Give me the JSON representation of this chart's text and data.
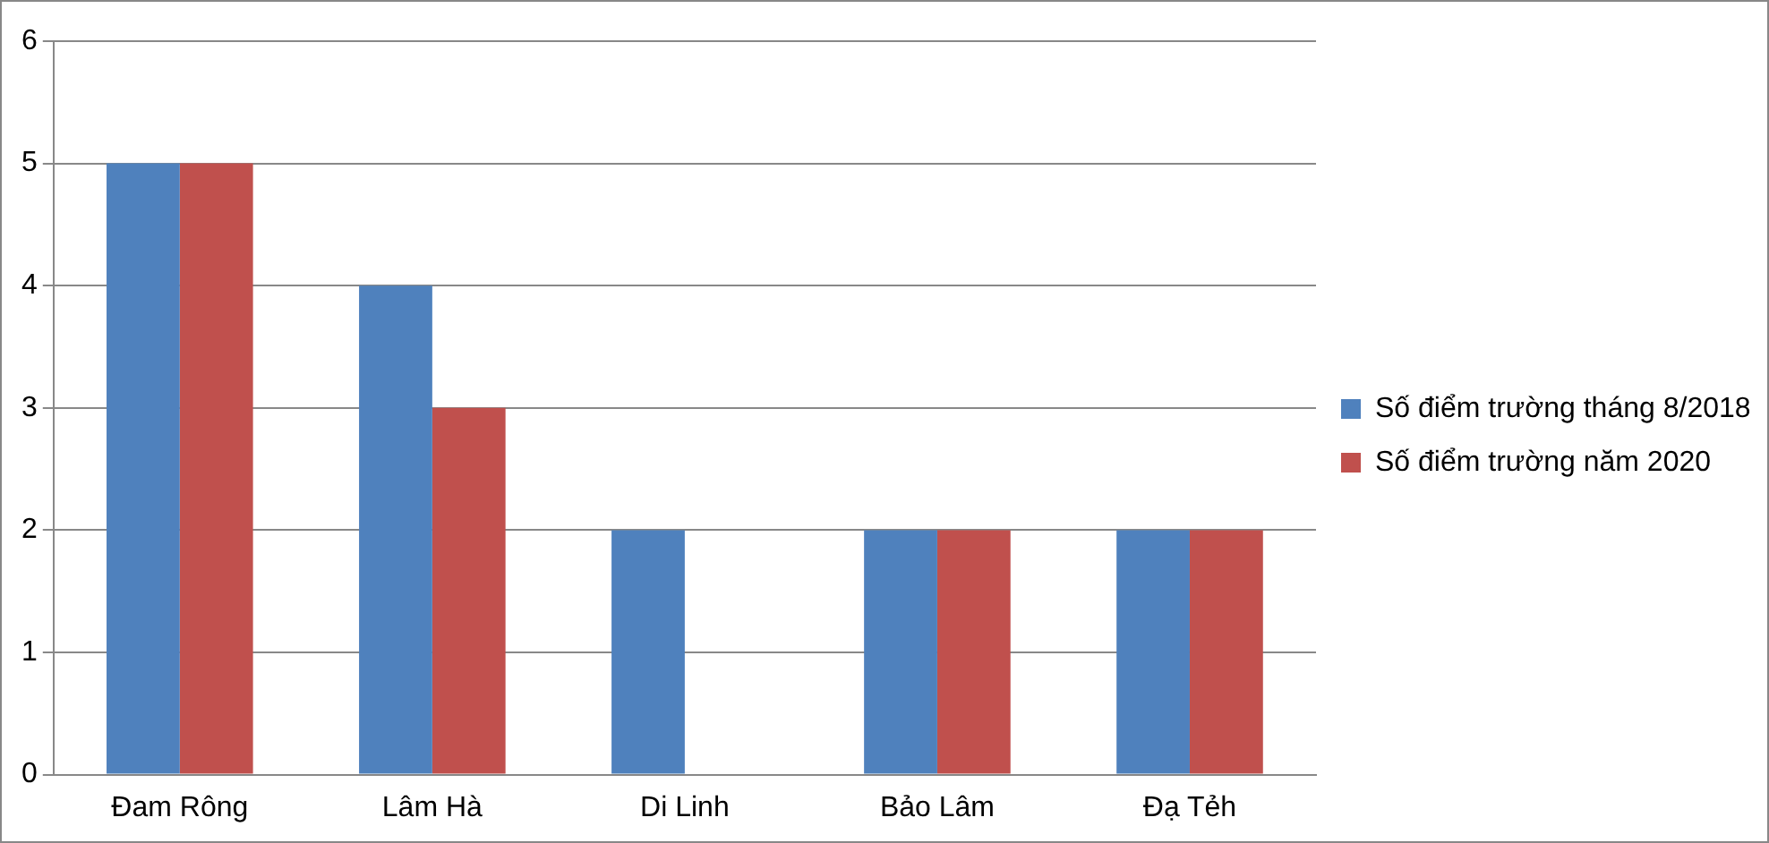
{
  "chart_data": {
    "type": "bar",
    "categories": [
      "Đam Rông",
      "Lâm Hà",
      "Di Linh",
      "Bảo Lâm",
      "Đạ Tẻh"
    ],
    "series": [
      {
        "name": "Số điểm trường tháng 8/2018",
        "color": "#4f81bd",
        "values": [
          5,
          4,
          2,
          2,
          2
        ]
      },
      {
        "name": "Số điểm trường năm 2020",
        "color": "#c0504d",
        "values": [
          5,
          3,
          0,
          2,
          2
        ]
      }
    ],
    "ylim": [
      0,
      6
    ],
    "yticks": [
      0,
      1,
      2,
      3,
      4,
      5,
      6
    ],
    "grid": "y",
    "legend": "right"
  }
}
